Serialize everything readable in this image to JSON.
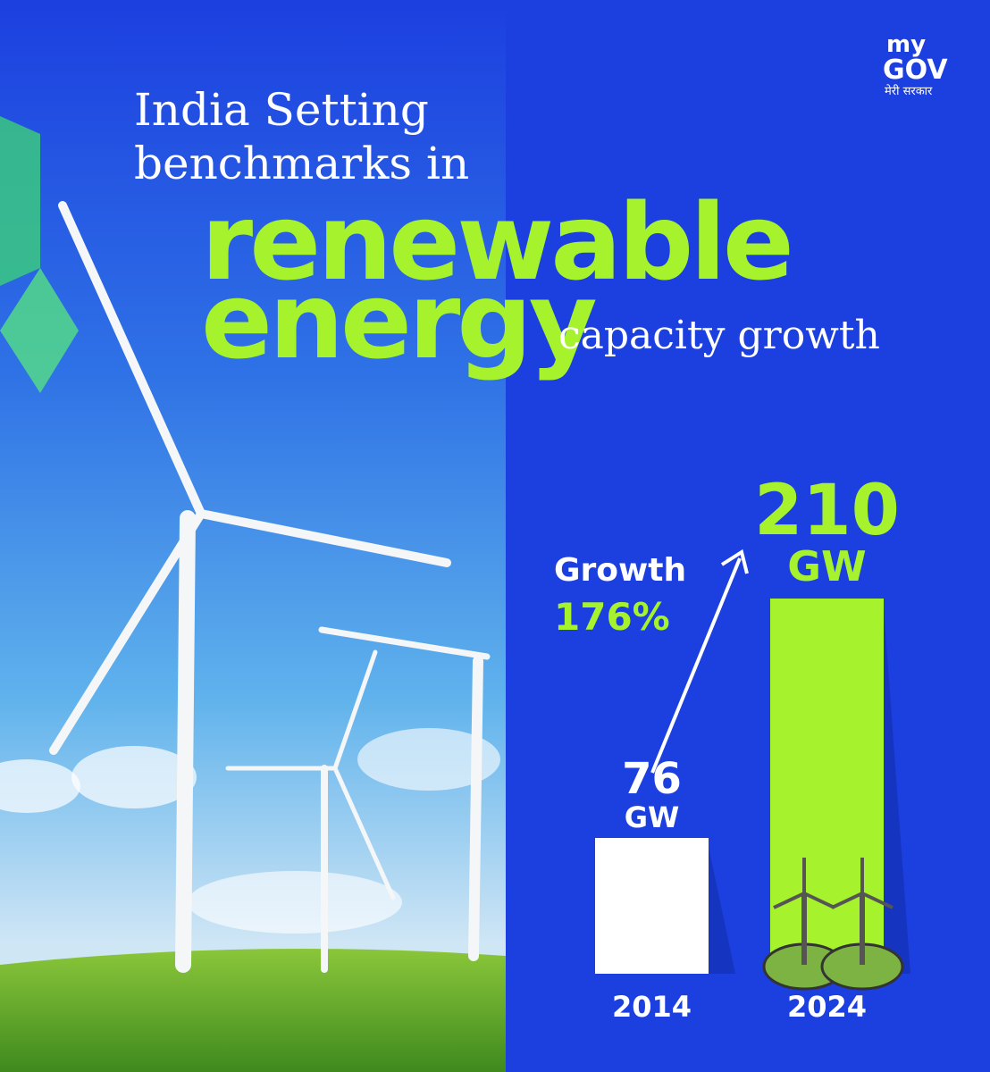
{
  "chart_data": {
    "type": "bar",
    "title_lines": [
      "India Setting",
      "benchmarks in"
    ],
    "highlight": [
      "renewable",
      "energy"
    ],
    "subtitle": "capacity growth",
    "categories": [
      "2014",
      "2024"
    ],
    "values": [
      76,
      210
    ],
    "unit": "GW",
    "colors": [
      "#ffffff",
      "#a6f22c"
    ],
    "annotation": {
      "label": "Growth",
      "value_label": "176%"
    },
    "logo": {
      "top": "my",
      "main": "GOV",
      "tagline": "मेरी सरकार"
    }
  }
}
